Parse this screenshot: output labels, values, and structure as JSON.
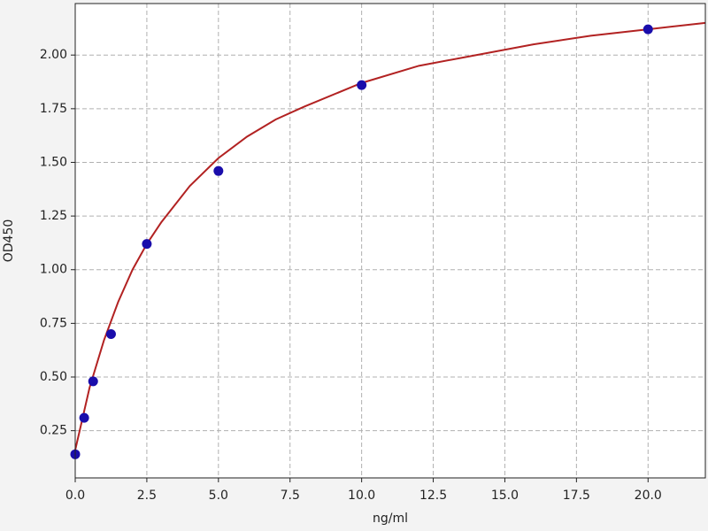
{
  "chart_data": {
    "type": "scatter",
    "xlabel": "ng/ml",
    "ylabel": "OD450",
    "xlim": [
      0,
      22
    ],
    "ylim": [
      0.03,
      2.24
    ],
    "xticks": [
      {
        "value": 0,
        "label": "0.0"
      },
      2.5,
      {
        "value": 5,
        "label": "5.0"
      },
      7.5,
      {
        "value": 10,
        "label": "10.0"
      },
      12.5,
      {
        "value": 15,
        "label": "15.0"
      },
      17.5,
      {
        "value": 20,
        "label": "20.0"
      }
    ],
    "yticks": [
      0.25,
      {
        "value": 0.5,
        "label": "0.50"
      },
      0.75,
      {
        "value": 1,
        "label": "1.00"
      },
      1.25,
      {
        "value": 1.5,
        "label": "1.50"
      },
      1.75,
      {
        "value": 2,
        "label": "2.00"
      }
    ],
    "grid": true,
    "series": [
      {
        "style": "line",
        "color": "#b22222",
        "x": [
          0,
          0.5,
          1,
          1.5,
          2,
          2.5,
          3,
          4,
          5,
          6,
          7,
          8,
          10,
          12,
          14,
          16,
          18,
          20,
          22
        ],
        "values": [
          0.16,
          0.45,
          0.67,
          0.85,
          1.0,
          1.12,
          1.22,
          1.39,
          1.52,
          1.62,
          1.7,
          1.76,
          1.87,
          1.95,
          2.0,
          2.05,
          2.09,
          2.12,
          2.15
        ]
      },
      {
        "style": "markers",
        "color": "#1a0dab",
        "x": [
          0,
          0.3125,
          0.625,
          1.25,
          2.5,
          5,
          10,
          20
        ],
        "values": [
          0.14,
          0.31,
          0.48,
          0.7,
          1.12,
          1.46,
          1.86,
          2.12
        ]
      }
    ]
  }
}
